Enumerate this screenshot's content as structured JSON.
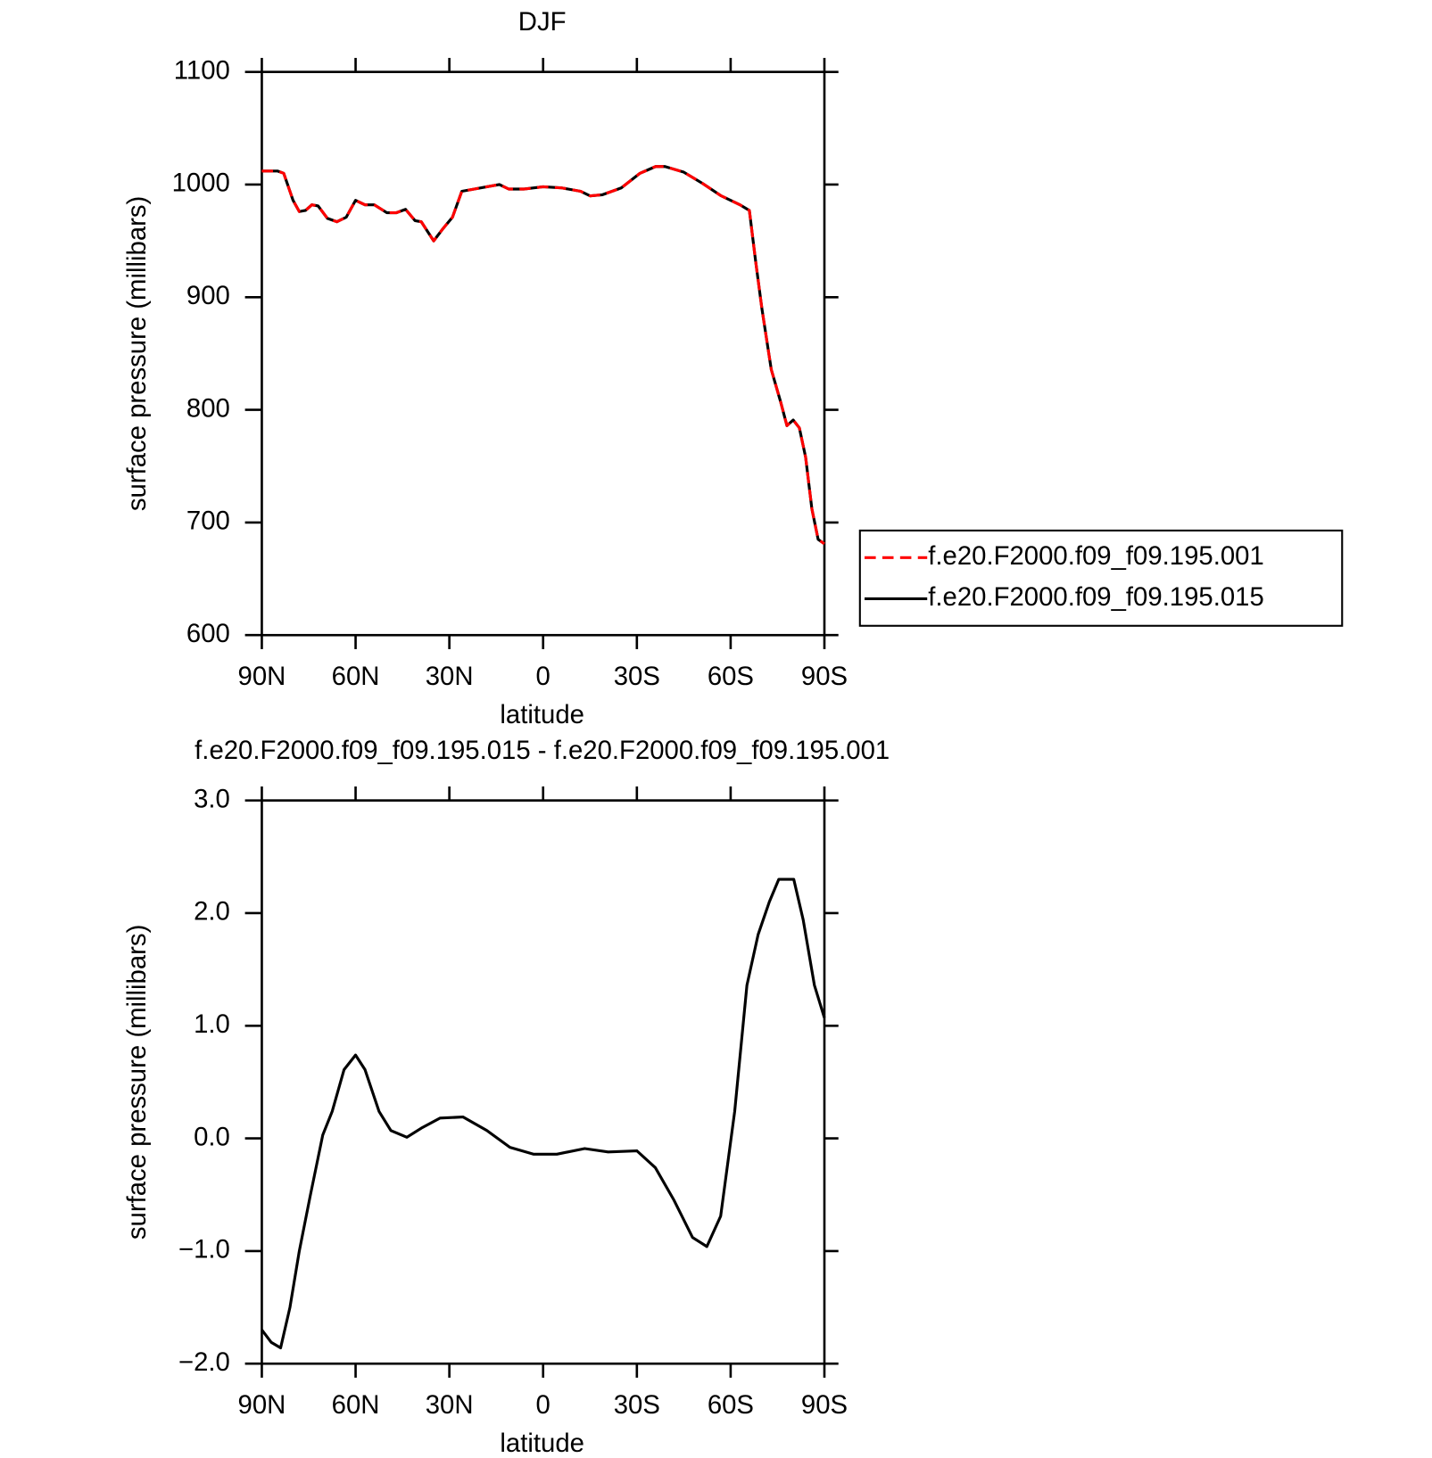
{
  "chart_data": [
    {
      "type": "line",
      "title": "DJF",
      "xlabel": "latitude",
      "ylabel": "surface pressure (millibars)",
      "x": [
        90,
        85,
        83,
        80,
        78,
        76,
        74,
        72,
        69,
        66,
        63,
        60,
        57,
        54,
        50,
        47,
        44,
        41,
        39,
        35,
        32,
        29,
        26,
        22,
        18,
        14,
        11,
        6,
        0,
        -6,
        -12,
        -15,
        -19,
        -25,
        -31,
        -36,
        -39,
        -45,
        -51,
        -57,
        -63,
        -66,
        -68,
        -70,
        -73,
        -76,
        -78,
        -80,
        -82,
        -84,
        -86,
        -88,
        -90
      ],
      "series": [
        {
          "name": "f.e20.F2000.f09_f09.195.001",
          "color": "#ff0000",
          "linestyle": "dashed",
          "values": [
            1012,
            1012,
            1010,
            986,
            976,
            977,
            982,
            981,
            970,
            967,
            971,
            986,
            982,
            982,
            975,
            975,
            978,
            968,
            967,
            950,
            961,
            971,
            994,
            996,
            998,
            1000,
            996,
            996,
            998,
            997,
            994,
            990,
            991,
            997,
            1010,
            1016,
            1016,
            1011,
            1001,
            990,
            982,
            977,
            932,
            890,
            836,
            807,
            786,
            791,
            784,
            758,
            712,
            685,
            681
          ]
        },
        {
          "name": "f.e20.F2000.f09_f09.195.015",
          "color": "#000000",
          "linestyle": "solid",
          "values": [
            1012,
            1012,
            1010,
            986,
            976,
            977,
            982,
            981,
            970,
            967,
            971,
            986,
            982,
            982,
            975,
            975,
            978,
            968,
            967,
            950,
            961,
            971,
            994,
            996,
            998,
            1000,
            996,
            996,
            998,
            997,
            994,
            990,
            991,
            997,
            1010,
            1016,
            1016,
            1011,
            1001,
            990,
            982,
            977,
            932,
            890,
            836,
            807,
            786,
            791,
            784,
            758,
            712,
            685,
            681
          ]
        }
      ],
      "xlim": [
        90,
        -90
      ],
      "xticks": [
        {
          "value": 90,
          "label": "90N"
        },
        {
          "value": 60,
          "label": "60N"
        },
        {
          "value": 30,
          "label": "30N"
        },
        0,
        {
          "value": -30,
          "label": "30S"
        },
        {
          "value": -60,
          "label": "60S"
        },
        {
          "value": -90,
          "label": "90S"
        }
      ],
      "ylim": [
        600,
        1100
      ],
      "yticks": [
        600,
        700,
        800,
        900,
        1000,
        1100
      ],
      "legend": "right"
    },
    {
      "type": "line",
      "title": "f.e20.F2000.f09_f09.195.015 - f.e20.F2000.f09_f09.195.001",
      "xlabel": "latitude",
      "ylabel": "surface pressure (millibars)",
      "x": [
        90,
        87,
        84,
        81,
        78,
        74.5,
        70.5,
        67.5,
        63.7,
        60,
        57,
        52.5,
        48.7,
        43.6,
        39,
        33,
        25.6,
        18,
        10.6,
        3.1,
        -4.4,
        -13.3,
        -20.8,
        -30,
        -35.9,
        -41.9,
        -47.8,
        -52.4,
        -56.8,
        -61.3,
        -65.2,
        -68.8,
        -72.4,
        -75.4,
        -80.2,
        -83.2,
        -86.8,
        -90
      ],
      "series": [
        {
          "color": "#000000",
          "linestyle": "solid",
          "values": [
            -1.7,
            -1.81,
            -1.86,
            -1.5,
            -1.0,
            -0.51,
            0.03,
            0.24,
            0.61,
            0.74,
            0.61,
            0.24,
            0.07,
            0.01,
            0.09,
            0.18,
            0.19,
            0.07,
            -0.08,
            -0.14,
            -0.14,
            -0.09,
            -0.12,
            -0.11,
            -0.26,
            -0.55,
            -0.88,
            -0.96,
            -0.69,
            0.24,
            1.36,
            1.81,
            2.1,
            2.3,
            2.3,
            1.94,
            1.36,
            1.07
          ]
        }
      ],
      "xlim": [
        90,
        -90
      ],
      "xticks": [
        {
          "value": 90,
          "label": "90N"
        },
        {
          "value": 60,
          "label": "60N"
        },
        {
          "value": 30,
          "label": "30N"
        },
        0,
        {
          "value": -30,
          "label": "30S"
        },
        {
          "value": -60,
          "label": "60S"
        },
        {
          "value": -90,
          "label": "90S"
        }
      ],
      "ylim": [
        -2,
        3
      ],
      "yticks": [
        {
          "value": -2,
          "label": "−2.0"
        },
        {
          "value": -1,
          "label": "−1.0"
        },
        {
          "value": 0,
          "label": "0.0"
        },
        {
          "value": 1,
          "label": "1.0"
        },
        {
          "value": 2,
          "label": "2.0"
        },
        {
          "value": 3,
          "label": "3.0"
        }
      ]
    }
  ]
}
